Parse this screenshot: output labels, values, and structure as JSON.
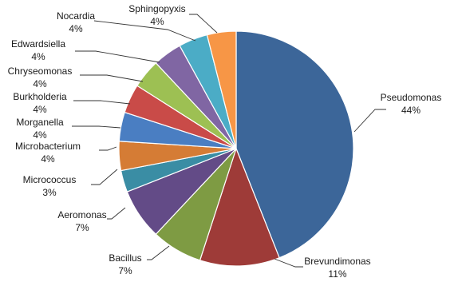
{
  "chart_data": {
    "type": "pie",
    "title": "",
    "slices": [
      {
        "label": "Pseudomonas",
        "pct_text": "44%",
        "value": 44,
        "color": "#3C6699"
      },
      {
        "label": "Brevundimonas",
        "pct_text": "11%",
        "value": 11,
        "color": "#9E3B38"
      },
      {
        "label": "Bacillus",
        "pct_text": "7%",
        "value": 7,
        "color": "#7E9B43"
      },
      {
        "label": "Aeromonas",
        "pct_text": "7%",
        "value": 7,
        "color": "#634B87"
      },
      {
        "label": "Micrococcus",
        "pct_text": "3%",
        "value": 3,
        "color": "#3A8DA4"
      },
      {
        "label": "Microbacterium",
        "pct_text": "4%",
        "value": 4,
        "color": "#D57C35"
      },
      {
        "label": "Morganella",
        "pct_text": "4%",
        "value": 4,
        "color": "#4A7EC2"
      },
      {
        "label": "Burkholderia",
        "pct_text": "4%",
        "value": 4,
        "color": "#C94B48"
      },
      {
        "label": "Chryseomonas",
        "pct_text": "4%",
        "value": 4,
        "color": "#9DC053"
      },
      {
        "label": "Edwardsiella",
        "pct_text": "4%",
        "value": 4,
        "color": "#8066A3"
      },
      {
        "label": "Nocardia",
        "pct_text": "4%",
        "value": 4,
        "color": "#4BACC6"
      },
      {
        "label": "Sphingopyxis",
        "pct_text": "4%",
        "value": 4,
        "color": "#F79646"
      }
    ]
  }
}
